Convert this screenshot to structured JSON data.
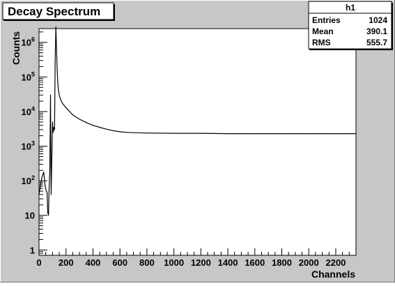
{
  "chart_data": {
    "type": "line",
    "title": "Decay Spectrum",
    "xlabel": "Channels",
    "ylabel": "Counts",
    "xlim": [
      0,
      2350
    ],
    "ylim": [
      0.7,
      2500000
    ],
    "yscale": "log",
    "grid": false,
    "legend": "none",
    "x_ticks": [
      0,
      200,
      400,
      600,
      800,
      1000,
      1200,
      1400,
      1600,
      1800,
      2000,
      2200
    ],
    "y_ticks": [
      {
        "value": 1,
        "label": "1"
      },
      {
        "value": 10,
        "label": "10"
      },
      {
        "value": 100,
        "label": "10^2"
      },
      {
        "value": 1000,
        "label": "10^3"
      },
      {
        "value": 10000,
        "label": "10^4"
      },
      {
        "value": 100000,
        "label": "10^5"
      },
      {
        "value": 1000000,
        "label": "10^6"
      }
    ],
    "series": [
      {
        "name": "h1",
        "x": [
          0,
          20,
          35,
          45,
          55,
          60,
          65,
          70,
          75,
          80,
          85,
          90,
          100,
          105,
          110,
          115,
          120,
          125,
          130,
          135,
          140,
          145,
          150,
          160,
          175,
          200,
          250,
          300,
          350,
          400,
          450,
          500,
          550,
          600,
          650,
          700,
          800,
          1000,
          1200,
          1400,
          1600,
          1800,
          2000,
          2200,
          2350
        ],
        "y": [
          40,
          120,
          180,
          70,
          50,
          45,
          12,
          10,
          60,
          200,
          30000,
          40,
          5000,
          2500,
          3500,
          3000,
          300000,
          2800000,
          600000,
          150000,
          60000,
          40000,
          30000,
          22000,
          17000,
          13000,
          8000,
          6000,
          4800,
          4000,
          3500,
          3100,
          2800,
          2600,
          2500,
          2450,
          2400,
          2350,
          2350,
          2300,
          2300,
          2300,
          2300,
          2300,
          2300
        ]
      }
    ]
  },
  "stats_box": {
    "name": "h1",
    "rows": [
      {
        "label": "Entries",
        "value": "1024"
      },
      {
        "label": "Mean",
        "value": "390.1"
      },
      {
        "label": "RMS",
        "value": "555.7"
      }
    ]
  },
  "colors": {
    "canvas": "#c7c7c7",
    "frame": "#ffffff",
    "line": "#000000"
  }
}
